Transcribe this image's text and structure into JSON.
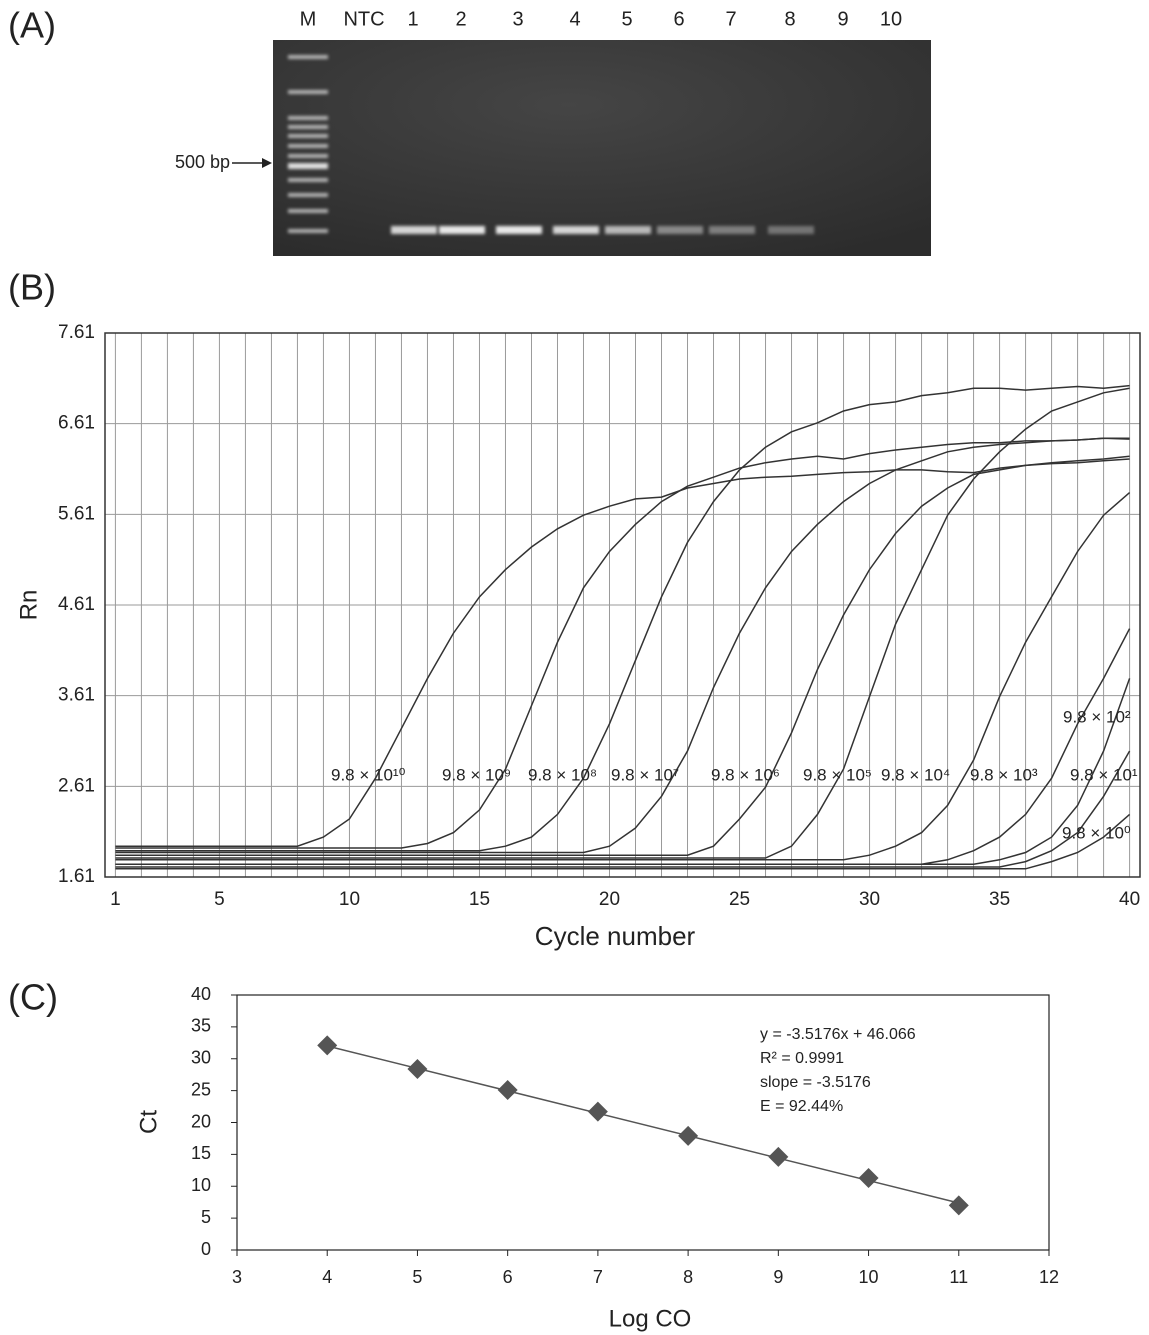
{
  "chart_data": [
    {
      "type": "gel",
      "panel_label": "(A)",
      "lanes": [
        "M",
        "NTC",
        "1",
        "2",
        "3",
        "4",
        "5",
        "6",
        "7",
        "8",
        "9",
        "10"
      ],
      "marker_label": "500 bp"
    },
    {
      "type": "line",
      "panel_label": "(B)",
      "x_label": "Cycle number",
      "y_label": "Rn",
      "x": [
        1,
        2,
        3,
        4,
        5,
        6,
        7,
        8,
        9,
        10,
        11,
        12,
        13,
        14,
        15,
        16,
        17,
        18,
        19,
        20,
        21,
        22,
        23,
        24,
        25,
        26,
        27,
        28,
        29,
        30,
        31,
        32,
        33,
        34,
        35,
        36,
        37,
        38,
        39,
        40
      ],
      "xlim": [
        0.6,
        40.4
      ],
      "xticks": [
        1,
        5,
        10,
        15,
        20,
        25,
        30,
        35,
        40
      ],
      "ylim": [
        1.61,
        7.61
      ],
      "yticks": [
        1.61,
        2.61,
        3.61,
        4.61,
        5.61,
        6.61,
        7.61
      ],
      "grid": true,
      "series": [
        {
          "name": "9.8 × 10¹⁰",
          "color": "#333333",
          "values": [
            1.95,
            1.95,
            1.95,
            1.95,
            1.95,
            1.95,
            1.95,
            1.95,
            2.05,
            2.25,
            2.7,
            3.25,
            3.8,
            4.3,
            4.7,
            5.0,
            5.25,
            5.45,
            5.6,
            5.7,
            5.78,
            5.8,
            5.9,
            5.95,
            6.0,
            6.02,
            6.03,
            6.05,
            6.07,
            6.08,
            6.1,
            6.1,
            6.08,
            6.07,
            6.12,
            6.15,
            6.17,
            6.18,
            6.2,
            6.22
          ]
        },
        {
          "name": "9.8 × 10⁹",
          "color": "#333333",
          "values": [
            1.93,
            1.93,
            1.93,
            1.93,
            1.93,
            1.93,
            1.93,
            1.93,
            1.93,
            1.93,
            1.93,
            1.93,
            1.98,
            2.1,
            2.35,
            2.8,
            3.5,
            4.2,
            4.8,
            5.2,
            5.5,
            5.75,
            5.92,
            6.02,
            6.12,
            6.18,
            6.22,
            6.25,
            6.22,
            6.28,
            6.32,
            6.35,
            6.38,
            6.4,
            6.4,
            6.42,
            6.42,
            6.43,
            6.45,
            6.45
          ]
        },
        {
          "name": "9.8 × 10⁸",
          "color": "#333333",
          "values": [
            1.9,
            1.9,
            1.9,
            1.9,
            1.9,
            1.9,
            1.9,
            1.9,
            1.9,
            1.9,
            1.9,
            1.9,
            1.9,
            1.9,
            1.9,
            1.95,
            2.05,
            2.3,
            2.7,
            3.3,
            4.0,
            4.7,
            5.3,
            5.75,
            6.1,
            6.35,
            6.52,
            6.62,
            6.75,
            6.82,
            6.85,
            6.92,
            6.95,
            7.0,
            7.0,
            6.98,
            7.0,
            7.02,
            7.0,
            7.03
          ]
        },
        {
          "name": "9.8 × 10⁷",
          "color": "#333333",
          "values": [
            1.88,
            1.88,
            1.88,
            1.88,
            1.88,
            1.88,
            1.88,
            1.88,
            1.88,
            1.88,
            1.88,
            1.88,
            1.88,
            1.88,
            1.88,
            1.88,
            1.88,
            1.88,
            1.88,
            1.95,
            2.15,
            2.5,
            3.0,
            3.7,
            4.3,
            4.8,
            5.2,
            5.5,
            5.75,
            5.95,
            6.1,
            6.2,
            6.3,
            6.35,
            6.38,
            6.4,
            6.42,
            6.43,
            6.45,
            6.44
          ]
        },
        {
          "name": "9.8 × 10⁶",
          "color": "#333333",
          "values": [
            1.85,
            1.85,
            1.85,
            1.85,
            1.85,
            1.85,
            1.85,
            1.85,
            1.85,
            1.85,
            1.85,
            1.85,
            1.85,
            1.85,
            1.85,
            1.85,
            1.85,
            1.85,
            1.85,
            1.85,
            1.85,
            1.85,
            1.85,
            1.95,
            2.25,
            2.6,
            3.2,
            3.9,
            4.5,
            5.0,
            5.4,
            5.7,
            5.9,
            6.05,
            6.1,
            6.15,
            6.18,
            6.2,
            6.22,
            6.25
          ]
        },
        {
          "name": "9.8 × 10⁵",
          "color": "#333333",
          "values": [
            1.82,
            1.82,
            1.82,
            1.82,
            1.82,
            1.82,
            1.82,
            1.82,
            1.82,
            1.82,
            1.82,
            1.82,
            1.82,
            1.82,
            1.82,
            1.82,
            1.82,
            1.82,
            1.82,
            1.82,
            1.82,
            1.82,
            1.82,
            1.82,
            1.82,
            1.82,
            1.95,
            2.3,
            2.8,
            3.6,
            4.4,
            5.0,
            5.6,
            6.0,
            6.3,
            6.55,
            6.75,
            6.85,
            6.95,
            7.0
          ]
        },
        {
          "name": "9.8 × 10⁴",
          "color": "#333333",
          "values": [
            1.8,
            1.8,
            1.8,
            1.8,
            1.8,
            1.8,
            1.8,
            1.8,
            1.8,
            1.8,
            1.8,
            1.8,
            1.8,
            1.8,
            1.8,
            1.8,
            1.8,
            1.8,
            1.8,
            1.8,
            1.8,
            1.8,
            1.8,
            1.8,
            1.8,
            1.8,
            1.8,
            1.8,
            1.8,
            1.85,
            1.95,
            2.1,
            2.4,
            2.9,
            3.6,
            4.2,
            4.7,
            5.2,
            5.6,
            5.85
          ]
        },
        {
          "name": "9.8 × 10³",
          "color": "#333333",
          "values": [
            1.75,
            1.75,
            1.75,
            1.75,
            1.75,
            1.75,
            1.75,
            1.75,
            1.75,
            1.75,
            1.75,
            1.75,
            1.75,
            1.75,
            1.75,
            1.75,
            1.75,
            1.75,
            1.75,
            1.75,
            1.75,
            1.75,
            1.75,
            1.75,
            1.75,
            1.75,
            1.75,
            1.75,
            1.75,
            1.75,
            1.75,
            1.75,
            1.8,
            1.9,
            2.05,
            2.3,
            2.7,
            3.3,
            3.8,
            4.35
          ]
        },
        {
          "name": "9.8 × 10²",
          "color": "#333333",
          "values": [
            1.75,
            1.75,
            1.75,
            1.75,
            1.75,
            1.75,
            1.75,
            1.75,
            1.75,
            1.75,
            1.75,
            1.75,
            1.75,
            1.75,
            1.75,
            1.75,
            1.75,
            1.75,
            1.75,
            1.75,
            1.75,
            1.75,
            1.75,
            1.75,
            1.75,
            1.75,
            1.75,
            1.75,
            1.75,
            1.75,
            1.75,
            1.75,
            1.75,
            1.75,
            1.8,
            1.88,
            2.05,
            2.4,
            3.0,
            3.8
          ]
        },
        {
          "name": "9.8 × 10¹",
          "color": "#333333",
          "values": [
            1.72,
            1.72,
            1.72,
            1.72,
            1.72,
            1.72,
            1.72,
            1.72,
            1.72,
            1.72,
            1.72,
            1.72,
            1.72,
            1.72,
            1.72,
            1.72,
            1.72,
            1.72,
            1.72,
            1.72,
            1.72,
            1.72,
            1.72,
            1.72,
            1.72,
            1.72,
            1.72,
            1.72,
            1.72,
            1.72,
            1.72,
            1.72,
            1.72,
            1.72,
            1.72,
            1.78,
            1.9,
            2.1,
            2.5,
            3.0
          ]
        },
        {
          "name": "9.8 × 10⁰",
          "color": "#333333",
          "values": [
            1.7,
            1.7,
            1.7,
            1.7,
            1.7,
            1.7,
            1.7,
            1.7,
            1.7,
            1.7,
            1.7,
            1.7,
            1.7,
            1.7,
            1.7,
            1.7,
            1.7,
            1.7,
            1.7,
            1.7,
            1.7,
            1.7,
            1.7,
            1.7,
            1.7,
            1.7,
            1.7,
            1.7,
            1.7,
            1.7,
            1.7,
            1.7,
            1.7,
            1.7,
            1.7,
            1.7,
            1.78,
            1.88,
            2.05,
            2.3
          ]
        }
      ]
    },
    {
      "type": "scatter",
      "panel_label": "(C)",
      "x_label": "Log CO",
      "y_label": "Ct",
      "x": [
        4,
        5,
        6,
        7,
        8,
        9,
        10,
        11
      ],
      "values": [
        32.1,
        28.4,
        25.1,
        21.7,
        17.9,
        14.6,
        11.3,
        7.0
      ],
      "color": "#555555",
      "xlim": [
        3,
        12
      ],
      "xticks": [
        3,
        4,
        5,
        6,
        7,
        8,
        9,
        10,
        11,
        12
      ],
      "ylim": [
        0,
        40
      ],
      "yticks": [
        0,
        5,
        10,
        15,
        20,
        25,
        30,
        35,
        40
      ],
      "grid": false,
      "trendline": {
        "slope": -3.5176,
        "intercept": 46.066,
        "color": "#555555"
      },
      "annotations": [
        "y = -3.5176x + 46.066",
        "R² = 0.9991",
        "slope = -3.5176",
        "E = 92.44%"
      ]
    }
  ]
}
